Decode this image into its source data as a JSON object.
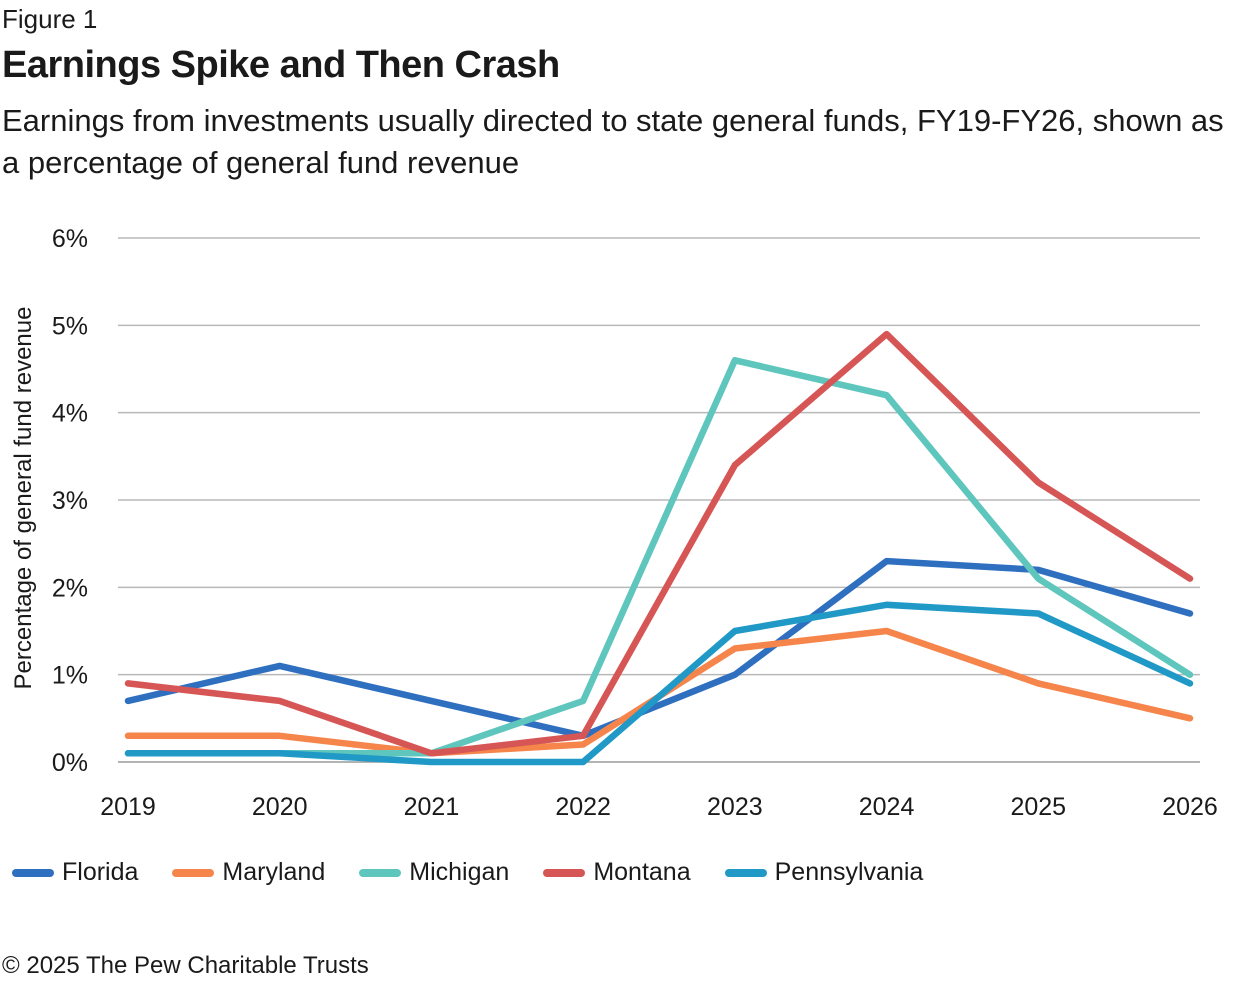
{
  "figure_label": "Figure 1",
  "title": "Earnings Spike and Then Crash",
  "subtitle": "Earnings from investments usually directed to state general funds, FY19-FY26, shown as a percentage of general fund revenue",
  "footer": "© 2025 The Pew Charitable Trusts",
  "chart_data": {
    "type": "line",
    "x": [
      "2019",
      "2020",
      "2021",
      "2022",
      "2023",
      "2024",
      "2025",
      "2026"
    ],
    "ylabel": "Percentage of general fund revenue",
    "xlabel": "",
    "ylim": [
      0,
      6
    ],
    "yticks": [
      "0%",
      "1%",
      "2%",
      "3%",
      "4%",
      "5%",
      "6%"
    ],
    "grid": true,
    "legend_position": "bottom",
    "series": [
      {
        "name": "Florida",
        "color": "#2f6fbf",
        "values": [
          0.7,
          1.1,
          0.7,
          0.3,
          1.0,
          2.3,
          2.2,
          1.7
        ]
      },
      {
        "name": "Maryland",
        "color": "#f5854a",
        "values": [
          0.3,
          0.3,
          0.1,
          0.2,
          1.3,
          1.5,
          0.9,
          0.5
        ]
      },
      {
        "name": "Michigan",
        "color": "#5ec6bd",
        "values": [
          0.1,
          0.1,
          0.1,
          0.7,
          4.6,
          4.2,
          2.1,
          1.0
        ]
      },
      {
        "name": "Montana",
        "color": "#d65656",
        "values": [
          0.9,
          0.7,
          0.1,
          0.3,
          3.4,
          4.9,
          3.2,
          2.1
        ]
      },
      {
        "name": "Pennsylvania",
        "color": "#2199c7",
        "values": [
          0.1,
          0.1,
          0.0,
          0.0,
          1.5,
          1.8,
          1.7,
          0.9
        ]
      }
    ]
  }
}
